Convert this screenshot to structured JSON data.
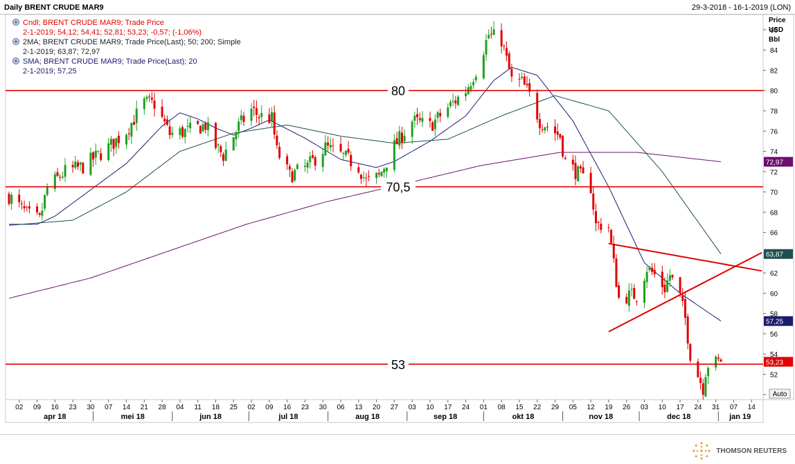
{
  "header": {
    "title": "Daily BRENT CRUDE MAR9",
    "date_range": "29-3-2018 - 16-1-2019 (LON)"
  },
  "legend": [
    {
      "icon": "indicator-icon",
      "title": "Cndl; BRENT CRUDE MAR9; Trade Price",
      "values": "2-1-2019; 54,12; 54,41; 52,81; 53,23; -0,57; (-1,06%)",
      "color": "#e00000"
    },
    {
      "icon": "indicator-icon",
      "title": "2MA; BRENT CRUDE MAR9; Trade Price(Last);  50; 200; Simple",
      "values": "2-1-2019; 63,87; 72,97",
      "color": "#222222"
    },
    {
      "icon": "indicator-icon",
      "title": "SMA; BRENT CRUDE MAR9; Trade Price(Last);  20",
      "values": "2-1-2019; 57,25",
      "color": "#1a1a6e"
    }
  ],
  "axis": {
    "unit_lines": [
      "Price",
      "USD",
      "Bbl"
    ],
    "auto_label": "Auto",
    "y_ticks": [
      "86",
      "84",
      "82",
      "80",
      "78",
      "76",
      "74",
      "72",
      "70",
      "68",
      "66",
      "64",
      "62",
      "60",
      "58",
      "56",
      "54",
      "52",
      "50"
    ],
    "day_ticks": [
      "02",
      "09",
      "16",
      "23",
      "30",
      "07",
      "14",
      "21",
      "28",
      "04",
      "11",
      "18",
      "25",
      "02",
      "09",
      "16",
      "23",
      "30",
      "06",
      "13",
      "20",
      "27",
      "03",
      "10",
      "17",
      "24",
      "01",
      "08",
      "15",
      "22",
      "29",
      "05",
      "12",
      "19",
      "26",
      "03",
      "10",
      "17",
      "24",
      "31",
      "07",
      "14"
    ],
    "months": [
      "apr 18",
      "mei 18",
      "jun 18",
      "jul 18",
      "aug 18",
      "sep 18",
      "okt 18",
      "nov 18",
      "dec 18",
      "jan 19"
    ]
  },
  "colors": {
    "up": "#1ea01e",
    "down": "#e00000",
    "sma20": "#1a1a6e",
    "ma50": "#1e4e4e",
    "ma200": "#6e0e6e",
    "hline": "#e00000",
    "trend": "#e00000",
    "badge_ma200": "#6e0e6e",
    "badge_ma50": "#1e4e4e",
    "badge_sma20": "#1a1a6e",
    "badge_last": "#e00000"
  },
  "annotations": {
    "h80": "80",
    "h70": "70,5",
    "h53": "53"
  },
  "badges": {
    "ma200": "72,97",
    "ma50": "63,87",
    "sma20": "57,25",
    "last": "53,23"
  },
  "brand": "THOMSON REUTERS",
  "chart_data": {
    "type": "candlestick",
    "title": "Daily BRENT CRUDE MAR9",
    "ylabel": "Price USD Bbl",
    "ylim": [
      49.5,
      87.5
    ],
    "horizontal_lines": [
      80,
      70.5,
      53
    ],
    "trendlines": [
      {
        "from": [
          "2018-11-19",
          64.9
        ],
        "to": [
          "2019-01-18",
          62.2
        ]
      },
      {
        "from": [
          "2018-11-19",
          56.2
        ],
        "to": [
          "2019-01-18",
          64.0
        ]
      }
    ],
    "series": [
      {
        "name": "Cndl",
        "waypoints": [
          [
            "2018-03-29",
            69.6
          ],
          [
            "2018-04-05",
            67.8
          ],
          [
            "2018-04-10",
            67.2
          ],
          [
            "2018-04-13",
            70.4
          ],
          [
            "2018-04-20",
            72.0
          ],
          [
            "2018-04-27",
            72.5
          ],
          [
            "2018-05-07",
            74.4
          ],
          [
            "2018-05-14",
            76.0
          ],
          [
            "2018-05-21",
            78.8
          ],
          [
            "2018-05-25",
            78.7
          ],
          [
            "2018-05-31",
            75.7
          ],
          [
            "2018-06-07",
            76.0
          ],
          [
            "2018-06-14",
            76.6
          ],
          [
            "2018-06-18",
            74.5
          ],
          [
            "2018-06-21",
            73.6
          ],
          [
            "2018-06-27",
            76.5
          ],
          [
            "2018-07-02",
            78.1
          ],
          [
            "2018-07-05",
            77.5
          ],
          [
            "2018-07-10",
            77.2
          ],
          [
            "2018-07-12",
            74.0
          ],
          [
            "2018-07-17",
            71.6
          ],
          [
            "2018-07-24",
            72.5
          ],
          [
            "2018-07-31",
            74.4
          ],
          [
            "2018-08-07",
            73.5
          ],
          [
            "2018-08-13",
            72.5
          ],
          [
            "2018-08-16",
            71.0
          ],
          [
            "2018-08-21",
            71.5
          ],
          [
            "2018-08-27",
            74.5
          ],
          [
            "2018-09-03",
            77.0
          ],
          [
            "2018-09-10",
            76.5
          ],
          [
            "2018-09-17",
            78.3
          ],
          [
            "2018-09-24",
            80.0
          ],
          [
            "2018-09-28",
            82.0
          ],
          [
            "2018-10-03",
            85.5
          ],
          [
            "2018-10-08",
            85.0
          ],
          [
            "2018-10-12",
            81.0
          ],
          [
            "2018-10-16",
            80.8
          ],
          [
            "2018-10-19",
            79.5
          ],
          [
            "2018-10-23",
            77.0
          ],
          [
            "2018-10-26",
            76.5
          ],
          [
            "2018-10-31",
            75.5
          ],
          [
            "2018-11-02",
            73.0
          ],
          [
            "2018-11-07",
            71.8
          ],
          [
            "2018-11-12",
            70.5
          ],
          [
            "2018-11-14",
            66.7
          ],
          [
            "2018-11-16",
            66.8
          ],
          [
            "2018-11-19",
            66.5
          ],
          [
            "2018-11-21",
            62.9
          ],
          [
            "2018-11-23",
            59.5
          ],
          [
            "2018-11-28",
            59.8
          ],
          [
            "2018-11-30",
            59.8
          ],
          [
            "2018-12-04",
            62.5
          ],
          [
            "2018-12-07",
            61.8
          ],
          [
            "2018-12-11",
            60.5
          ],
          [
            "2018-12-13",
            61.8
          ],
          [
            "2018-12-17",
            59.6
          ],
          [
            "2018-12-19",
            57.5
          ],
          [
            "2018-12-21",
            54.0
          ],
          [
            "2018-12-24",
            51.9
          ],
          [
            "2018-12-26",
            50.7
          ],
          [
            "2018-12-27",
            52.3
          ],
          [
            "2018-12-28",
            53.0
          ],
          [
            "2019-01-02",
            53.23
          ]
        ]
      },
      {
        "name": "SMA 20",
        "waypoints": [
          [
            "2018-03-29",
            66.8
          ],
          [
            "2018-04-09",
            66.8
          ],
          [
            "2018-04-16",
            67.6
          ],
          [
            "2018-04-30",
            70.2
          ],
          [
            "2018-05-14",
            72.8
          ],
          [
            "2018-05-28",
            76.5
          ],
          [
            "2018-06-04",
            77.8
          ],
          [
            "2018-06-11",
            77.2
          ],
          [
            "2018-06-18",
            76.3
          ],
          [
            "2018-06-25",
            75.6
          ],
          [
            "2018-07-02",
            76.3
          ],
          [
            "2018-07-09",
            77.1
          ],
          [
            "2018-07-23",
            75.3
          ],
          [
            "2018-08-06",
            73.2
          ],
          [
            "2018-08-20",
            72.4
          ],
          [
            "2018-08-27",
            73.0
          ],
          [
            "2018-09-10",
            75.0
          ],
          [
            "2018-09-24",
            77.5
          ],
          [
            "2018-10-05",
            81.0
          ],
          [
            "2018-10-12",
            82.3
          ],
          [
            "2018-10-22",
            81.5
          ],
          [
            "2018-11-05",
            77.0
          ],
          [
            "2018-11-19",
            70.5
          ],
          [
            "2018-12-03",
            63.0
          ],
          [
            "2018-12-17",
            60.0
          ],
          [
            "2019-01-02",
            57.25
          ]
        ]
      },
      {
        "name": "MA 50",
        "waypoints": [
          [
            "2018-03-29",
            66.7
          ],
          [
            "2018-04-23",
            67.2
          ],
          [
            "2018-05-14",
            70.0
          ],
          [
            "2018-06-04",
            74.0
          ],
          [
            "2018-06-25",
            75.8
          ],
          [
            "2018-07-16",
            76.6
          ],
          [
            "2018-08-06",
            75.5
          ],
          [
            "2018-08-27",
            74.8
          ],
          [
            "2018-09-17",
            75.2
          ],
          [
            "2018-10-08",
            77.5
          ],
          [
            "2018-10-29",
            79.5
          ],
          [
            "2018-11-19",
            78.0
          ],
          [
            "2018-12-10",
            72.0
          ],
          [
            "2019-01-02",
            63.87
          ]
        ]
      },
      {
        "name": "MA 200",
        "waypoints": [
          [
            "2018-03-29",
            59.5
          ],
          [
            "2018-04-30",
            61.5
          ],
          [
            "2018-05-31",
            64.2
          ],
          [
            "2018-06-30",
            66.8
          ],
          [
            "2018-07-31",
            69.0
          ],
          [
            "2018-08-31",
            70.8
          ],
          [
            "2018-09-30",
            72.6
          ],
          [
            "2018-10-31",
            73.9
          ],
          [
            "2018-11-30",
            73.9
          ],
          [
            "2019-01-02",
            72.97
          ]
        ]
      }
    ]
  }
}
